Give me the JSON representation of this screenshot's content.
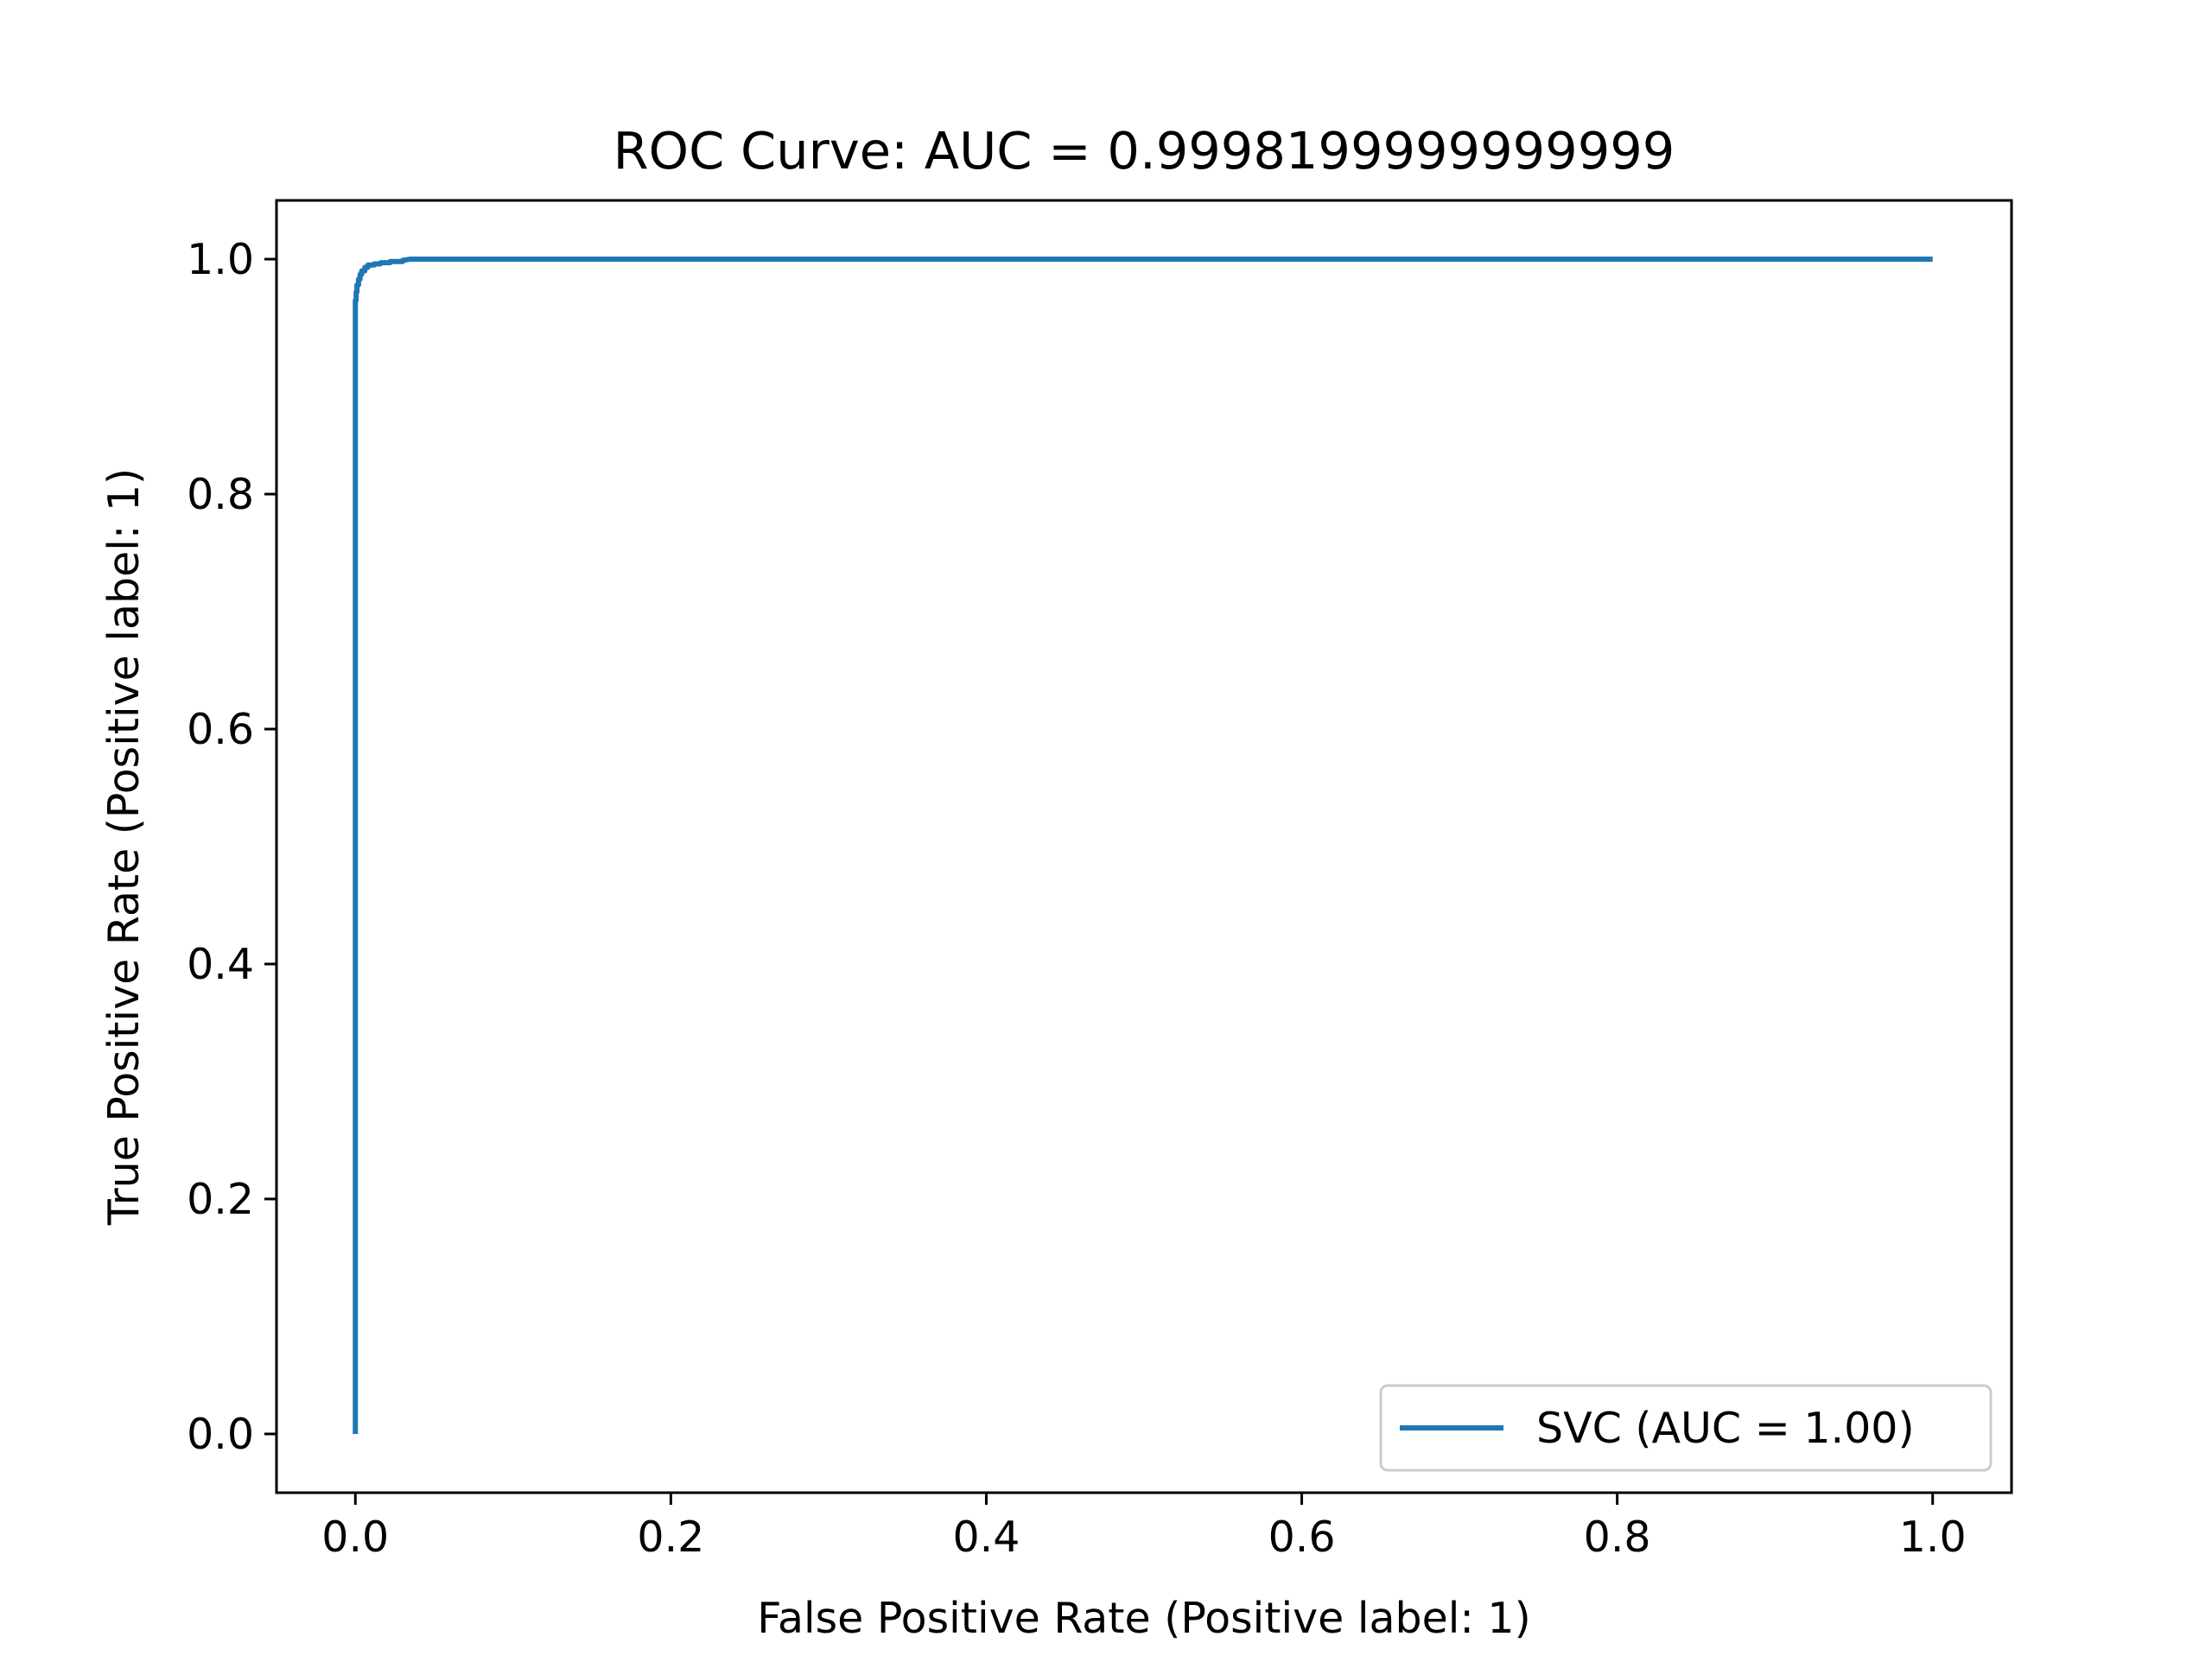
{
  "chart_data": {
    "type": "line",
    "title": "ROC Curve: AUC = 0.9998199999999999",
    "xlabel": "False Positive Rate (Positive label: 1)",
    "ylabel": "True Positive Rate (Positive label: 1)",
    "xlim": [
      -0.05,
      1.05
    ],
    "ylim": [
      -0.05,
      1.05
    ],
    "xticks": [
      0.0,
      0.2,
      0.4,
      0.6,
      0.8,
      1.0
    ],
    "xtick_labels": [
      "0.0",
      "0.2",
      "0.4",
      "0.6",
      "0.8",
      "1.0"
    ],
    "yticks": [
      0.0,
      0.2,
      0.4,
      0.6,
      0.8,
      1.0
    ],
    "ytick_labels": [
      "0.0",
      "0.2",
      "0.4",
      "0.6",
      "0.8",
      "1.0"
    ],
    "grid": false,
    "legend": {
      "position": "lower-right",
      "entries": [
        "SVC (AUC = 1.00)"
      ]
    },
    "series": [
      {
        "name": "SVC (AUC = 1.00)",
        "color": "#1f77b4",
        "x": [
          0.0,
          0.0,
          0.0005,
          0.0005,
          0.001,
          0.001,
          0.002,
          0.002,
          0.003,
          0.003,
          0.004,
          0.004,
          0.006,
          0.006,
          0.008,
          0.008,
          0.012,
          0.012,
          0.016,
          0.016,
          0.022,
          0.022,
          0.03,
          0.03,
          0.035,
          1.0
        ],
        "y": [
          0.0,
          0.965,
          0.965,
          0.972,
          0.972,
          0.978,
          0.978,
          0.983,
          0.983,
          0.987,
          0.987,
          0.99,
          0.99,
          0.993,
          0.993,
          0.995,
          0.995,
          0.996,
          0.996,
          0.997,
          0.997,
          0.998,
          0.998,
          0.999,
          1.0,
          1.0
        ]
      }
    ]
  }
}
